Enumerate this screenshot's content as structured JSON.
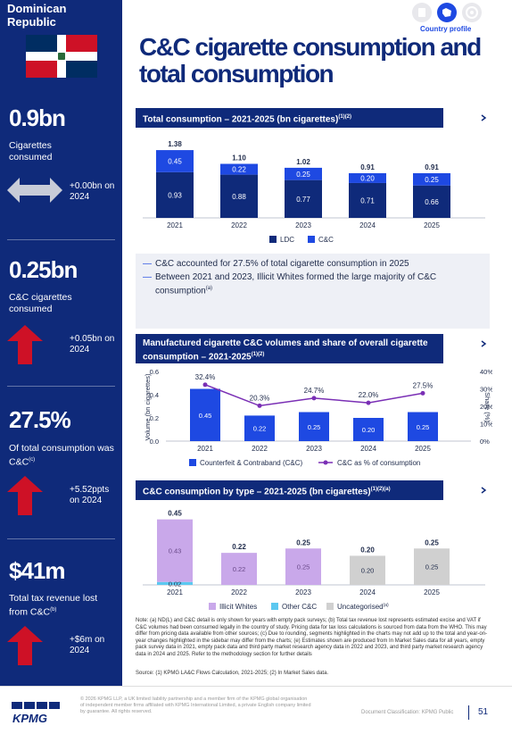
{
  "sidebar": {
    "country": "Dominican Republic",
    "kpis": [
      {
        "value": "0.9bn",
        "label": "Cigarettes consumed",
        "change": "+0.00bn on 2024",
        "icon": "double-arrow-icon"
      },
      {
        "value": "0.25bn",
        "label": "C&C cigarettes consumed",
        "change": "+0.05bn on 2024",
        "icon": "up-arrow-icon"
      },
      {
        "value": "27.5%",
        "label": "Of total consumption was C&C",
        "label_sup": "(c)",
        "change": "+5.52ppts on 2024",
        "icon": "up-arrow-icon"
      },
      {
        "value": "$41m",
        "label": "Total tax revenue lost from C&C",
        "label_sup": "(b)",
        "change": "+$6m on 2024",
        "icon": "up-arrow-icon"
      }
    ]
  },
  "header": {
    "country_profile": "Country profile",
    "title": "C&C cigarette consumption and total consumption"
  },
  "chart_data": [
    {
      "type": "bar",
      "stacked": true,
      "title": "Total consumption – 2021-2025 (bn cigarettes)",
      "title_sup": "(1)(2)",
      "categories": [
        "2021",
        "2022",
        "2023",
        "2024",
        "2025"
      ],
      "series": [
        {
          "name": "LDC",
          "values": [
            0.93,
            0.88,
            0.77,
            0.71,
            0.66
          ],
          "color": "#0f2a7a"
        },
        {
          "name": "C&C",
          "values": [
            0.45,
            0.22,
            0.25,
            0.2,
            0.25
          ],
          "color": "#1e49e2"
        }
      ],
      "totals": [
        1.38,
        1.1,
        1.02,
        0.91,
        0.91
      ],
      "legend": "bottom"
    },
    {
      "type": "bar",
      "title": "Manufactured cigarette C&C volumes and share of overall cigarette consumption – 2021-2025",
      "title_sup": "(1)(2)",
      "categories": [
        "2021",
        "2022",
        "2023",
        "2024",
        "2025"
      ],
      "series": [
        {
          "name": "Counterfeit & Contraband (C&C)",
          "values": [
            0.45,
            0.22,
            0.25,
            0.2,
            0.25
          ],
          "color": "#1e49e2",
          "axis": "left"
        },
        {
          "name": "C&C as % of consumption",
          "type": "line",
          "values": [
            32.4,
            20.3,
            24.7,
            22.0,
            27.5
          ],
          "labels": [
            "32.4%",
            "20.3%",
            "24.7%",
            "22.0%",
            "27.5%"
          ],
          "color": "#7a2fb5",
          "axis": "right"
        }
      ],
      "ylabel": "Volume (bn cigarettes)",
      "ylim": [
        0,
        0.6
      ],
      "yticks": [
        "0.0",
        "0.2",
        "0.4",
        "0.6"
      ],
      "y2label": "Share (%)",
      "y2lim": [
        0,
        40
      ],
      "y2ticks": [
        "0%",
        "10%",
        "20%",
        "30%",
        "40%"
      ],
      "legend": "bottom"
    },
    {
      "type": "bar",
      "stacked": true,
      "title": "C&C consumption by type – 2021-2025 (bn cigarettes)",
      "title_sup": "(1)(2)(a)",
      "categories": [
        "2021",
        "2022",
        "2023",
        "2024",
        "2025"
      ],
      "series": [
        {
          "name": "Illicit Whites",
          "values": [
            0.43,
            0.22,
            0.25,
            null,
            null
          ],
          "color": "#c9a8ea"
        },
        {
          "name": "Other C&C",
          "values": [
            0.02,
            null,
            null,
            null,
            null
          ],
          "color": "#5cc8f0"
        },
        {
          "name": "Uncategorised",
          "name_sup": "(a)",
          "values": [
            null,
            null,
            null,
            0.2,
            0.25
          ],
          "color": "#d0d0d0"
        }
      ],
      "totals": [
        0.45,
        0.22,
        0.25,
        0.2,
        0.25
      ],
      "legend": "bottom"
    }
  ],
  "commentary": [
    "C&C accounted for 27.5% of total cigarette consumption in 2025",
    "Between 2021 and 2023, Illicit Whites formed the large majority of C&C consumption"
  ],
  "commentary_sup": "(a)",
  "note": "Note:   (a) ND(L) and C&C detail is only shown for years with empty pack surveys; (b) Total tax revenue lost represents estimated excise and VAT if C&C volumes had been consumed legally in the country of study. Pricing data for tax loss calculations is sourced from data from the WHO. This may differ from pricing data available from other sources; (c) Due to rounding, segments highlighted in the charts may not add up to the total and year-on-year changes highlighted in the sidebar may differ from the charts; (e) Estimates shown are produced from In Market Sales data for all years, empty pack survey data in 2021, empty pack data and third party market research agency data in 2022 and 2023, and third party market research agency data in 2024 and 2025.  Refer to the methodology section for further details",
  "source": "Source: (1) KPMG LA&C Flows Calculation, 2021-2025; (2) In Market Sales data.",
  "footer": {
    "legal": "© 2026 KPMG LLP, a UK limited liability partnership and a member firm of the KPMG global organisation of independent member firms affiliated with KPMG International Limited, a private English company limited by guarantee. All rights reserved.",
    "logo": "KPMG",
    "classification": "Document Classification: KPMG Public",
    "page": "51"
  }
}
